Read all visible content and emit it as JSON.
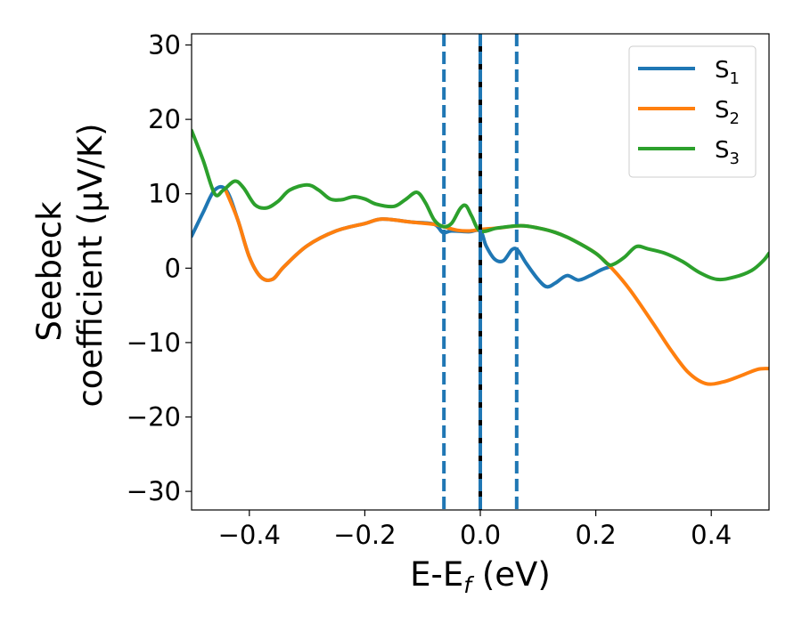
{
  "chart_data": {
    "type": "line",
    "xlabel": {
      "main": "E-E",
      "sub": "f",
      "rest": " (eV)"
    },
    "ylabel": {
      "line1": "Seebeck",
      "line2": "coefficient  (μV/K)"
    },
    "xlim": [
      -0.5,
      0.5
    ],
    "ylim": [
      -32.5,
      31.5
    ],
    "x_ticks": [
      -0.4,
      -0.2,
      0.0,
      0.2,
      0.4
    ],
    "x_tick_labels": [
      "−0.4",
      "−0.2",
      "0.0",
      "0.2",
      "0.4"
    ],
    "y_ticks": [
      -30,
      -20,
      -10,
      0,
      10,
      20,
      30
    ],
    "y_tick_labels": [
      "−30",
      "−20",
      "−10",
      "0",
      "10",
      "20",
      "30"
    ],
    "grid": false,
    "legend_position": "top-right",
    "series": [
      {
        "name": "S",
        "sub": "1",
        "color": "#1f77b4",
        "points": [
          [
            -0.5,
            4.3
          ],
          [
            -0.48,
            7.5
          ],
          [
            -0.46,
            10.5
          ],
          [
            -0.44,
            10.5
          ],
          [
            -0.42,
            6.5
          ],
          [
            -0.4,
            1.5
          ],
          [
            -0.38,
            -1.2
          ],
          [
            -0.36,
            -1.5
          ],
          [
            -0.34,
            0.2
          ],
          [
            -0.3,
            3.0
          ],
          [
            -0.25,
            5.0
          ],
          [
            -0.2,
            6.0
          ],
          [
            -0.17,
            6.6
          ],
          [
            -0.12,
            6.2
          ],
          [
            -0.08,
            5.9
          ],
          [
            -0.065,
            4.8
          ],
          [
            -0.05,
            5.0
          ],
          [
            -0.02,
            4.9
          ],
          [
            0.0,
            5.0
          ],
          [
            0.01,
            3.0
          ],
          [
            0.025,
            1.2
          ],
          [
            0.04,
            1.0
          ],
          [
            0.055,
            2.5
          ],
          [
            0.065,
            2.4
          ],
          [
            0.08,
            0.6
          ],
          [
            0.1,
            -1.5
          ],
          [
            0.115,
            -2.5
          ],
          [
            0.13,
            -2.0
          ],
          [
            0.15,
            -1.0
          ],
          [
            0.17,
            -1.6
          ],
          [
            0.19,
            -1.0
          ],
          [
            0.21,
            -0.2
          ],
          [
            0.225,
            0.2
          ]
        ]
      },
      {
        "name": "S",
        "sub": "2",
        "color": "#ff7f0e",
        "points": [
          [
            -0.44,
            10.3
          ],
          [
            -0.42,
            6.5
          ],
          [
            -0.4,
            1.5
          ],
          [
            -0.38,
            -1.2
          ],
          [
            -0.36,
            -1.5
          ],
          [
            -0.34,
            0.2
          ],
          [
            -0.3,
            3.0
          ],
          [
            -0.25,
            5.0
          ],
          [
            -0.2,
            6.0
          ],
          [
            -0.17,
            6.6
          ],
          [
            -0.12,
            6.2
          ],
          [
            -0.08,
            5.9
          ],
          [
            -0.06,
            5.5
          ],
          [
            -0.04,
            5.1
          ],
          [
            -0.02,
            5.0
          ],
          [
            0.0,
            5.2
          ],
          [
            0.03,
            5.4
          ],
          [
            0.07,
            5.7
          ],
          [
            0.1,
            5.4
          ],
          [
            0.13,
            4.8
          ],
          [
            0.16,
            3.8
          ],
          [
            0.2,
            2.0
          ],
          [
            0.23,
            -0.2
          ],
          [
            0.26,
            -3.0
          ],
          [
            0.3,
            -7.5
          ],
          [
            0.33,
            -11.0
          ],
          [
            0.36,
            -14.0
          ],
          [
            0.39,
            -15.5
          ],
          [
            0.42,
            -15.3
          ],
          [
            0.45,
            -14.5
          ],
          [
            0.48,
            -13.6
          ],
          [
            0.5,
            -13.5
          ]
        ]
      },
      {
        "name": "S",
        "sub": "3",
        "color": "#2ca02c",
        "points": [
          [
            -0.5,
            18.5
          ],
          [
            -0.48,
            14.5
          ],
          [
            -0.46,
            10.0
          ],
          [
            -0.445,
            10.5
          ],
          [
            -0.425,
            11.7
          ],
          [
            -0.41,
            10.8
          ],
          [
            -0.39,
            8.5
          ],
          [
            -0.37,
            8.1
          ],
          [
            -0.35,
            9.0
          ],
          [
            -0.33,
            10.5
          ],
          [
            -0.3,
            11.2
          ],
          [
            -0.28,
            10.5
          ],
          [
            -0.26,
            9.3
          ],
          [
            -0.24,
            9.2
          ],
          [
            -0.22,
            9.6
          ],
          [
            -0.2,
            9.3
          ],
          [
            -0.18,
            8.6
          ],
          [
            -0.15,
            8.3
          ],
          [
            -0.13,
            9.2
          ],
          [
            -0.11,
            10.2
          ],
          [
            -0.095,
            8.8
          ],
          [
            -0.08,
            6.5
          ],
          [
            -0.065,
            5.6
          ],
          [
            -0.05,
            6.0
          ],
          [
            -0.035,
            8.0
          ],
          [
            -0.025,
            8.4
          ],
          [
            -0.015,
            7.0
          ],
          [
            0.0,
            5.0
          ],
          [
            0.03,
            5.4
          ],
          [
            0.07,
            5.7
          ],
          [
            0.1,
            5.4
          ],
          [
            0.13,
            4.8
          ],
          [
            0.16,
            3.8
          ],
          [
            0.2,
            2.0
          ],
          [
            0.22,
            0.6
          ],
          [
            0.23,
            0.5
          ],
          [
            0.25,
            1.5
          ],
          [
            0.27,
            2.9
          ],
          [
            0.29,
            2.6
          ],
          [
            0.32,
            2.0
          ],
          [
            0.35,
            0.9
          ],
          [
            0.38,
            -0.6
          ],
          [
            0.41,
            -1.5
          ],
          [
            0.44,
            -1.2
          ],
          [
            0.47,
            -0.3
          ],
          [
            0.49,
            1.0
          ],
          [
            0.5,
            2.0
          ]
        ]
      }
    ],
    "vlines": [
      {
        "x": -0.063,
        "style": "dashed",
        "color": "#1f77b4"
      },
      {
        "x": 0.0,
        "style": "solid",
        "color": "#000000"
      },
      {
        "x": 0.0,
        "style": "dashed",
        "color": "#1f77b4"
      },
      {
        "x": 0.063,
        "style": "dashed",
        "color": "#1f77b4"
      }
    ]
  }
}
